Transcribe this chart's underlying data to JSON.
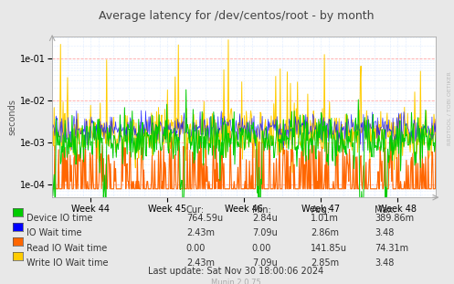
{
  "title": "Average latency for /dev/centos/root - by month",
  "ylabel": "seconds",
  "xtick_labels": [
    "Week 44",
    "Week 45",
    "Week 46",
    "Week 47",
    "Week 48"
  ],
  "background_color": "#e8e8e8",
  "plot_bg_color": "#ffffff",
  "major_grid_color": "#ff9999",
  "minor_grid_color": "#aaccff",
  "colors": {
    "device_io": "#00cc00",
    "io_wait": "#0000ff",
    "read_io_wait": "#ff6600",
    "write_io_wait": "#ffcc00"
  },
  "legend": [
    {
      "label": "Device IO time",
      "color": "#00cc00",
      "cur": "764.59u",
      "min": "2.84u",
      "avg": "1.01m",
      "max": "389.86m"
    },
    {
      "label": "IO Wait time",
      "color": "#0000ff",
      "cur": "2.43m",
      "min": "7.09u",
      "avg": "2.86m",
      "max": "3.48"
    },
    {
      "label": "Read IO Wait time",
      "color": "#ff6600",
      "cur": "0.00",
      "min": "0.00",
      "avg": "141.85u",
      "max": "74.31m"
    },
    {
      "label": "Write IO Wait time",
      "color": "#ffcc00",
      "cur": "2.43m",
      "min": "7.09u",
      "avg": "2.85m",
      "max": "3.48"
    }
  ],
  "footer": "Last update: Sat Nov 30 18:00:06 2024",
  "munin_version": "Munin 2.0.75",
  "rrdtool_label": "RRDTOOL / TOBI OETIKER",
  "title_fontsize": 9,
  "axis_fontsize": 7,
  "legend_fontsize": 7
}
